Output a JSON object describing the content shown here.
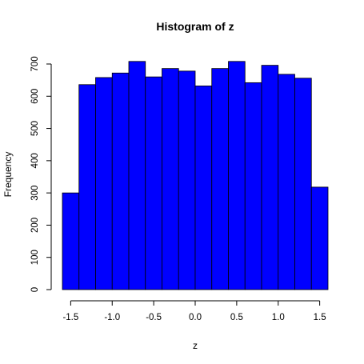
{
  "chart_data": {
    "type": "bar",
    "title": "Histogram of z",
    "xlabel": "z",
    "ylabel": "Frequency",
    "bin_edges": [
      -1.6,
      -1.4,
      -1.2,
      -1.0,
      -0.8,
      -0.6,
      -0.4,
      -0.2,
      0.0,
      0.2,
      0.4,
      0.6,
      0.8,
      1.0,
      1.2,
      1.4,
      1.6
    ],
    "values": [
      300,
      636,
      658,
      672,
      708,
      660,
      686,
      678,
      632,
      686,
      708,
      642,
      696,
      668,
      656,
      318
    ],
    "xlim": [
      -1.6,
      1.6
    ],
    "ylim": [
      0,
      700
    ],
    "xticks": [
      -1.5,
      -1.0,
      -0.5,
      0.0,
      0.5,
      1.0,
      1.5
    ],
    "xtick_labels": [
      "-1.5",
      "-1.0",
      "-0.5",
      "0.0",
      "0.5",
      "1.0",
      "1.5"
    ],
    "yticks": [
      0,
      100,
      200,
      300,
      400,
      500,
      600,
      700
    ],
    "ytick_labels": [
      "0",
      "100",
      "200",
      "300",
      "400",
      "500",
      "600",
      "700"
    ],
    "bar_color": "#0000ff",
    "edge_color": "#000000",
    "grid": false,
    "legend": "none"
  }
}
